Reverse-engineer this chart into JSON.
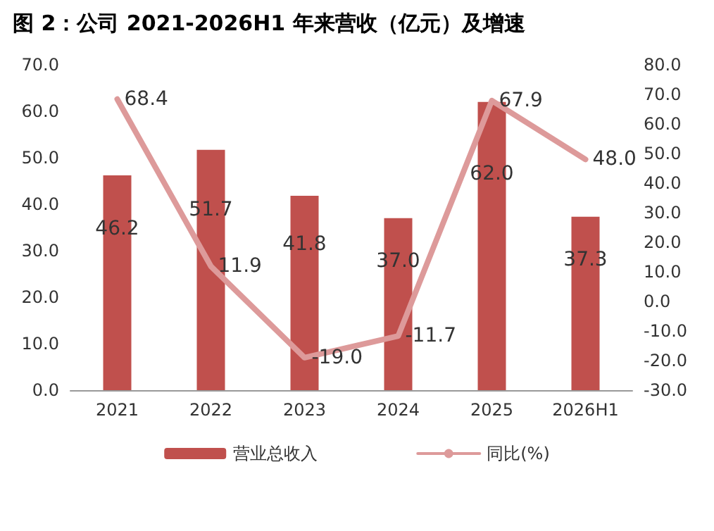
{
  "chart_data": {
    "type": "bar",
    "title": "图 2：公司 2021-2026H1 年来营收（亿元）及增速",
    "categories": [
      "2021",
      "2022",
      "2023",
      "2024",
      "2025",
      "2026H1"
    ],
    "series": [
      {
        "name": "营业总收入",
        "color": "#c0504d",
        "values": [
          46.2,
          51.7,
          41.8,
          37.0,
          62.0,
          37.3
        ],
        "value_labels": [
          "46.2",
          "51.7",
          "41.8",
          "37.0",
          "62.0",
          "37.3"
        ]
      },
      {
        "name": "同比(%)",
        "type": "line",
        "axis": "y2",
        "color": "#dd9a9a",
        "values": [
          68.4,
          11.9,
          -19.0,
          -11.7,
          67.9,
          48.0
        ],
        "value_labels": [
          "68.4",
          "11.9",
          "-19.0",
          "-11.7",
          "67.9",
          "48.0"
        ]
      }
    ],
    "ylim": [
      0,
      70
    ],
    "yticks": [
      {
        "value": 0,
        "label": "0.0"
      },
      {
        "value": 10,
        "label": "10.0"
      },
      {
        "value": 20,
        "label": "20.0"
      },
      {
        "value": 30,
        "label": "30.0"
      },
      {
        "value": 40,
        "label": "40.0"
      },
      {
        "value": 50,
        "label": "50.0"
      },
      {
        "value": 60,
        "label": "60.0"
      },
      {
        "value": 70,
        "label": "70.0"
      }
    ],
    "y2lim": [
      -30,
      80
    ],
    "y2ticks": [
      {
        "value": -30,
        "label": "-30.0"
      },
      {
        "value": -20,
        "label": "-20.0"
      },
      {
        "value": -10,
        "label": "-10.0"
      },
      {
        "value": 0,
        "label": "0.0"
      },
      {
        "value": 10,
        "label": "10.0"
      },
      {
        "value": 20,
        "label": "20.0"
      },
      {
        "value": 30,
        "label": "30.0"
      },
      {
        "value": 40,
        "label": "40.0"
      },
      {
        "value": 50,
        "label": "50.0"
      },
      {
        "value": 60,
        "label": "60.0"
      },
      {
        "value": 70,
        "label": "70.0"
      },
      {
        "value": 80,
        "label": "80.0"
      }
    ],
    "legend": "bottom",
    "grid": false,
    "marker": "none",
    "line_style": "solid"
  }
}
